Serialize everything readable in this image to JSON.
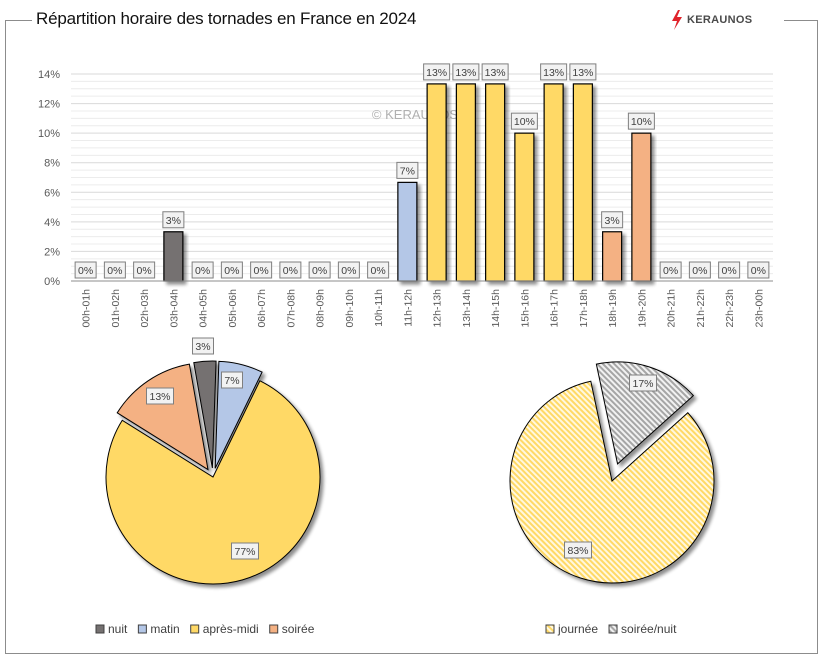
{
  "header": {
    "title": "Répartition horaire des tornades en France en 2024",
    "logo_text": "KERAUNOS",
    "logo_icon": "lightning-bolt-icon",
    "logo_color": "#e0232b"
  },
  "watermark": "© KERAUNOS",
  "colors": {
    "nuit": "#757171",
    "matin": "#b4c7e7",
    "apres_midi": "#ffd966",
    "soiree": "#f4b183",
    "journee": "#ffd966",
    "soiree_nuit": "#bfbfbf",
    "grid": "#d9d9d9",
    "axis_text": "#595959"
  },
  "chart_data": [
    {
      "type": "bar",
      "title": "Répartition horaire des tornades en France en 2024",
      "xlabel": "",
      "ylabel": "",
      "ylim": [
        0,
        14
      ],
      "yticks": [
        0,
        2,
        4,
        6,
        8,
        10,
        12,
        14
      ],
      "ytick_labels": [
        "0%",
        "2%",
        "4%",
        "6%",
        "8%",
        "10%",
        "12%",
        "14%"
      ],
      "grid": "major every 2%, minor every 0.5%",
      "categories": [
        "00h-01h",
        "01h-02h",
        "02h-03h",
        "03h-04h",
        "04h-05h",
        "05h-06h",
        "06h-07h",
        "07h-08h",
        "08h-09h",
        "09h-10h",
        "10h-11h",
        "11h-12h",
        "12h-13h",
        "13h-14h",
        "14h-15h",
        "15h-16h",
        "16h-17h",
        "17h-18h",
        "18h-19h",
        "19h-20h",
        "20h-21h",
        "21h-22h",
        "22h-23h",
        "23h-00h"
      ],
      "values": [
        0,
        0,
        0,
        3.33,
        0,
        0,
        0,
        0,
        0,
        0,
        0,
        6.67,
        13.33,
        13.33,
        13.33,
        10,
        13.33,
        13.33,
        3.33,
        10,
        0,
        0,
        0,
        0
      ],
      "data_labels": [
        "0%",
        "0%",
        "0%",
        "3%",
        "0%",
        "0%",
        "0%",
        "0%",
        "0%",
        "0%",
        "0%",
        "7%",
        "13%",
        "13%",
        "13%",
        "10%",
        "13%",
        "13%",
        "3%",
        "10%",
        "0%",
        "0%",
        "0%",
        "0%"
      ],
      "bar_groups": [
        "nuit",
        "nuit",
        "nuit",
        "nuit",
        "nuit",
        "nuit",
        "matin",
        "matin",
        "matin",
        "matin",
        "matin",
        "matin",
        "apres_midi",
        "apres_midi",
        "apres_midi",
        "apres_midi",
        "apres_midi",
        "apres_midi",
        "soiree",
        "soiree",
        "soiree",
        "soiree",
        "soiree",
        "soiree"
      ]
    },
    {
      "type": "pie",
      "title": "",
      "legend_position": "bottom",
      "slices": [
        {
          "key": "nuit",
          "label": "nuit",
          "value": 3.33,
          "data_label": "3%",
          "exploded": true
        },
        {
          "key": "matin",
          "label": "matin",
          "value": 6.67,
          "data_label": "7%",
          "exploded": true
        },
        {
          "key": "apres_midi",
          "label": "après-midi",
          "value": 76.67,
          "data_label": "77%",
          "exploded": false
        },
        {
          "key": "soiree",
          "label": "soirée",
          "value": 13.33,
          "data_label": "13%",
          "exploded": true
        }
      ]
    },
    {
      "type": "pie",
      "title": "",
      "legend_position": "bottom",
      "pattern": "diagonal-hatch",
      "slices": [
        {
          "key": "soiree_nuit",
          "label": "soirée/nuit",
          "value": 16.67,
          "data_label": "17%",
          "exploded": true
        },
        {
          "key": "journee",
          "label": "journée",
          "value": 83.33,
          "data_label": "83%",
          "exploded": false
        }
      ],
      "legend_order": [
        "journee",
        "soiree_nuit"
      ]
    }
  ]
}
